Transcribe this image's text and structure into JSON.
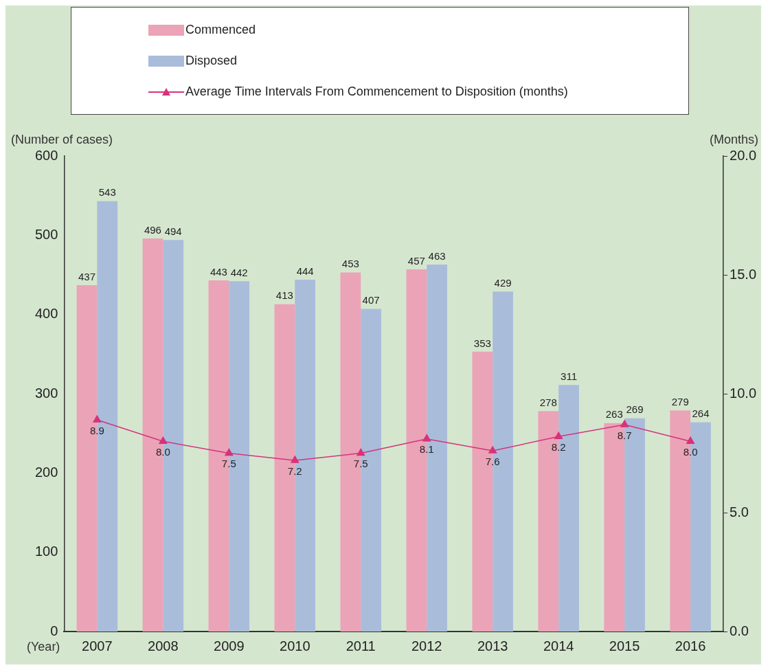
{
  "chart_data": {
    "type": "bar",
    "categories": [
      "2007",
      "2008",
      "2009",
      "2010",
      "2011",
      "2012",
      "2013",
      "2014",
      "2015",
      "2016"
    ],
    "xlabel": "(Year)",
    "ylabel": "(Number of cases)",
    "y2label": "(Months)",
    "series": [
      {
        "name": "Commenced",
        "color": "#eba3b7",
        "values": [
          437,
          496,
          443,
          413,
          453,
          457,
          353,
          278,
          263,
          279
        ]
      },
      {
        "name": "Disposed",
        "color": "#a9bddb",
        "values": [
          543,
          494,
          442,
          444,
          407,
          463,
          429,
          311,
          269,
          264
        ]
      },
      {
        "name": "Average Time Intervals From Commencement to Disposition  (months)",
        "type": "line",
        "axis": "y2",
        "color": "#d6337a",
        "marker": "triangle",
        "values": [
          8.9,
          8.0,
          7.5,
          7.2,
          7.5,
          8.1,
          7.6,
          8.2,
          8.7,
          8.0
        ],
        "value_labels": [
          "8.9",
          "8.0",
          "7.5",
          "7.2",
          "7.5",
          "8.1",
          "7.6",
          "8.2",
          "8.7",
          "8.0"
        ]
      }
    ],
    "ylim": [
      0,
      600
    ],
    "yticks": [
      0,
      100,
      200,
      300,
      400,
      500,
      600
    ],
    "y2lim": [
      0,
      20
    ],
    "y2ticks": [
      {
        "value": 0,
        "label": "0.0"
      },
      {
        "value": 5,
        "label": "5.0"
      },
      {
        "value": 10,
        "label": "10.0"
      },
      {
        "value": 15,
        "label": "15.0"
      },
      {
        "value": 20,
        "label": "20.0"
      }
    ],
    "data_labels": true,
    "legend": "top",
    "grid": false
  }
}
